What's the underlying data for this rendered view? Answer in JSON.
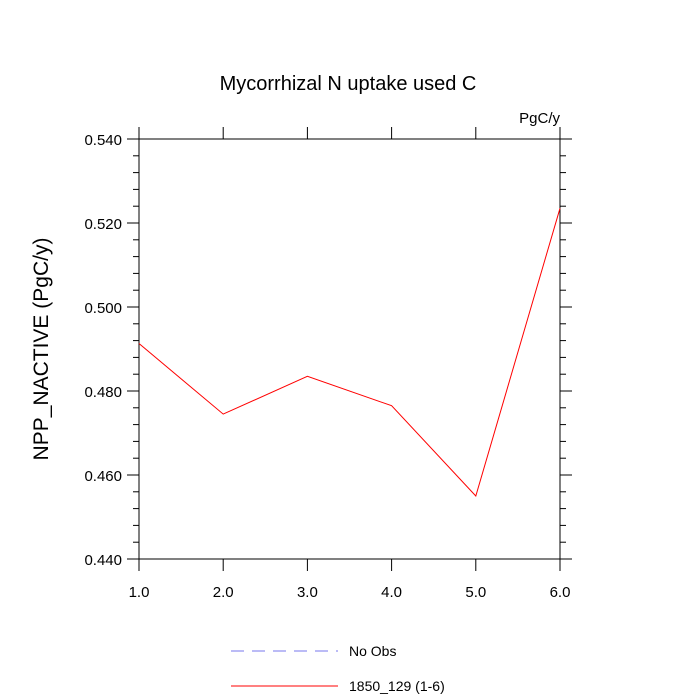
{
  "chart_data": {
    "type": "line",
    "title": "Mycorrhizal N uptake used C",
    "units": "PgC/y",
    "xlabel": "",
    "ylabel": "NPP_NACTIVE  (PgC/y)",
    "xlim": [
      1.0,
      6.0
    ],
    "ylim": [
      0.44,
      0.54
    ],
    "x_ticks": [
      1.0,
      2.0,
      3.0,
      4.0,
      5.0,
      6.0
    ],
    "x_tick_labels": [
      "1.0",
      "2.0",
      "3.0",
      "4.0",
      "5.0",
      "6.0"
    ],
    "y_ticks": [
      0.44,
      0.46,
      0.48,
      0.5,
      0.52,
      0.54
    ],
    "y_tick_labels": [
      "0.440",
      "0.460",
      "0.480",
      "0.500",
      "0.520",
      "0.540"
    ],
    "series": [
      {
        "name": "1850_129 (1-6)",
        "color": "#ff0000",
        "style": "solid",
        "x": [
          1.0,
          2.0,
          3.0,
          4.0,
          5.0,
          6.0
        ],
        "values": [
          0.4913,
          0.4745,
          0.4835,
          0.4765,
          0.455,
          0.5235
        ]
      }
    ],
    "legend": [
      {
        "label": "No Obs",
        "color": "#7777ee",
        "style": "dashed"
      },
      {
        "label": "1850_129 (1-6)",
        "color": "#ff0000",
        "style": "solid"
      }
    ],
    "legend_position": "bottom-center"
  }
}
